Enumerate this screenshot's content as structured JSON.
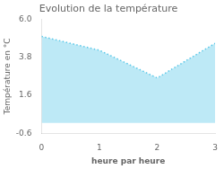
{
  "chart_data": {
    "type": "area",
    "title": "Evolution de la température",
    "xlabel": "heure par heure",
    "ylabel": "Température en °C",
    "x": [
      0,
      1,
      2,
      3
    ],
    "values": [
      5.0,
      4.2,
      2.6,
      4.6
    ],
    "color": "#5bc8e8",
    "line_style": "dotted",
    "xlim": [
      0,
      3
    ],
    "ylim": [
      -0.6,
      6.0
    ],
    "xticks": [
      0,
      1,
      2,
      3
    ],
    "yticks": [
      -0.6,
      1.6,
      3.8,
      {
        "value": 6.0,
        "label": "6.0"
      }
    ],
    "grid": false
  }
}
